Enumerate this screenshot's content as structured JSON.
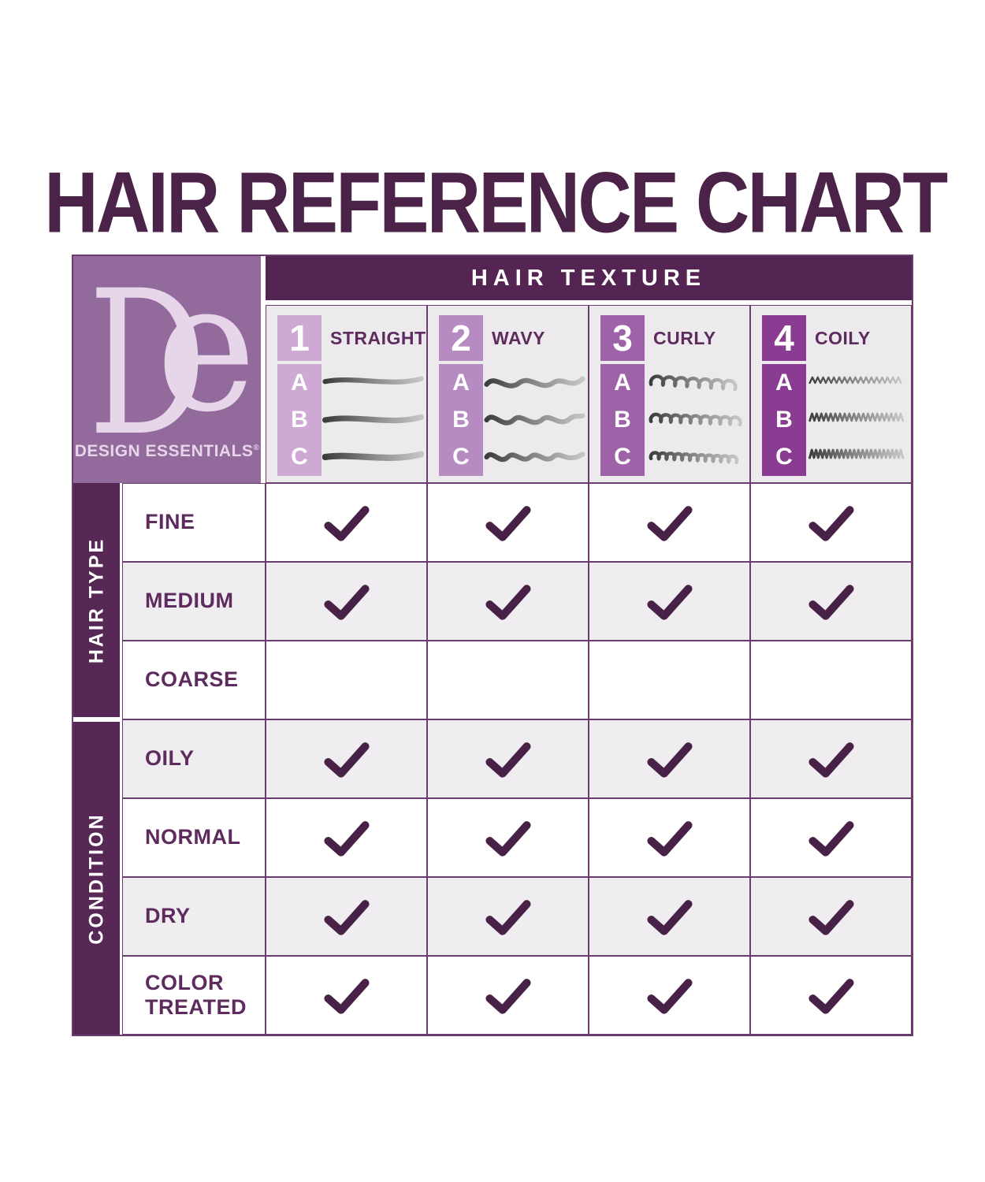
{
  "page": {
    "title": "HAIR REFERENCE CHART"
  },
  "logo": {
    "monogram_d": "D",
    "monogram_e": "e",
    "name": "DESIGN ESSENTIALS",
    "registered": "®"
  },
  "texture_header": {
    "title": "HAIR TEXTURE",
    "columns": [
      {
        "number": "1",
        "label": "STRAIGHT",
        "levels": [
          "A",
          "B",
          "C"
        ],
        "color": "#cda9d3",
        "pattern": "straight"
      },
      {
        "number": "2",
        "label": "WAVY",
        "levels": [
          "A",
          "B",
          "C"
        ],
        "color": "#b58bc1",
        "pattern": "wavy"
      },
      {
        "number": "3",
        "label": "CURLY",
        "levels": [
          "A",
          "B",
          "C"
        ],
        "color": "#9d62a8",
        "pattern": "curly"
      },
      {
        "number": "4",
        "label": "COILY",
        "levels": [
          "A",
          "B",
          "C"
        ],
        "color": "#8a3c93",
        "pattern": "coily"
      }
    ]
  },
  "row_groups": [
    {
      "label": "HAIR TYPE",
      "rows": [
        {
          "label": "FINE",
          "checks": [
            true,
            true,
            true,
            true
          ]
        },
        {
          "label": "MEDIUM",
          "checks": [
            true,
            true,
            true,
            true
          ]
        },
        {
          "label": "COARSE",
          "checks": [
            false,
            false,
            false,
            false
          ]
        }
      ]
    },
    {
      "label": "CONDITION",
      "rows": [
        {
          "label": "OILY",
          "checks": [
            true,
            true,
            true,
            true
          ]
        },
        {
          "label": "NORMAL",
          "checks": [
            true,
            true,
            true,
            true
          ]
        },
        {
          "label": "DRY",
          "checks": [
            true,
            true,
            true,
            true
          ]
        },
        {
          "label": "COLOR TREATED",
          "checks": [
            true,
            true,
            true,
            true
          ]
        }
      ]
    }
  ],
  "chart_data": {
    "type": "table",
    "title": "HAIR REFERENCE CHART",
    "column_group_label": "HAIR TEXTURE",
    "columns": [
      "1 STRAIGHT",
      "2 WAVY",
      "3 CURLY",
      "4 COILY"
    ],
    "column_sublevels": [
      "A",
      "B",
      "C"
    ],
    "row_group_labels": [
      "HAIR TYPE",
      "CONDITION"
    ],
    "rows": [
      "FINE",
      "MEDIUM",
      "COARSE",
      "OILY",
      "NORMAL",
      "DRY",
      "COLOR TREATED"
    ],
    "check_matrix": [
      [
        true,
        true,
        true,
        true
      ],
      [
        true,
        true,
        true,
        true
      ],
      [
        false,
        false,
        false,
        false
      ],
      [
        true,
        true,
        true,
        true
      ],
      [
        true,
        true,
        true,
        true
      ],
      [
        true,
        true,
        true,
        true
      ],
      [
        true,
        true,
        true,
        true
      ]
    ]
  },
  "colors": {
    "title_text": "#4c2348",
    "band_background": "#542452",
    "sidebar_background": "#572856",
    "logo_background": "#936a9c",
    "logo_foreground": "#e7d5e9",
    "check": "#482147",
    "grid_line": "#6d3c6e",
    "header_strip_background": "#eceaec",
    "row_alt_background": "#efedf0",
    "level_colors": [
      "#cda9d3",
      "#b58bc1",
      "#9d62a8",
      "#8a3c93"
    ]
  }
}
